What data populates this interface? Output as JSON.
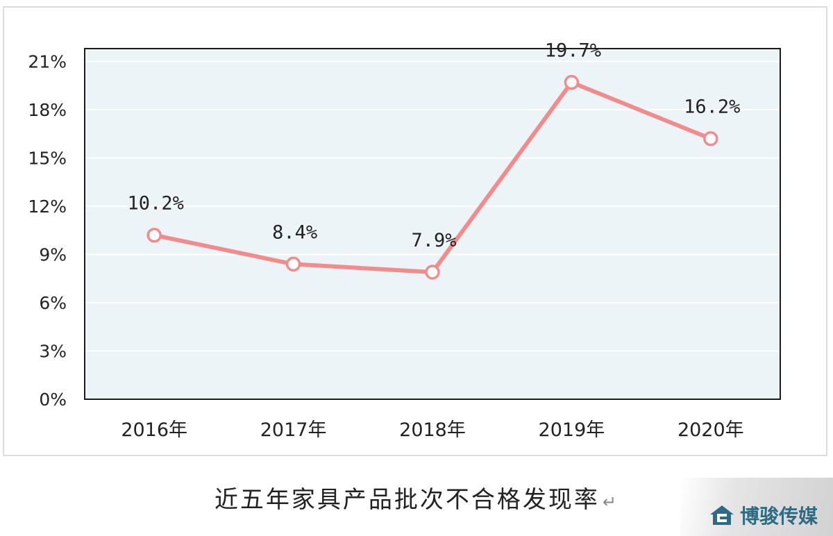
{
  "chart_data": {
    "type": "line",
    "title": "近五年家具产品批次不合格发现率",
    "categories": [
      "2016年",
      "2017年",
      "2018年",
      "2019年",
      "2020年"
    ],
    "series": [
      {
        "name": "不合格发现率",
        "values": [
          10.2,
          8.4,
          7.9,
          19.7,
          16.2
        ],
        "color": "#f08c8c"
      }
    ],
    "data_labels": [
      "10.2%",
      "8.4%",
      "7.9%",
      "19.7%",
      "16.2%"
    ],
    "yticks": [
      0,
      3,
      6,
      9,
      12,
      15,
      18,
      21
    ],
    "ytick_labels": [
      "0%",
      "3%",
      "6%",
      "9%",
      "12%",
      "15%",
      "18%",
      "21%"
    ],
    "ylim": [
      0,
      21.8
    ],
    "xlabel": "",
    "ylabel": "",
    "grid": true,
    "plot_background": "#edf4f8",
    "grid_color": "#ffffff"
  },
  "caption": {
    "text": "近五年家具产品批次不合格发现率",
    "return_mark": "↵"
  },
  "watermark": {
    "text": "博骏传媒",
    "icon": "house-logo-icon"
  }
}
